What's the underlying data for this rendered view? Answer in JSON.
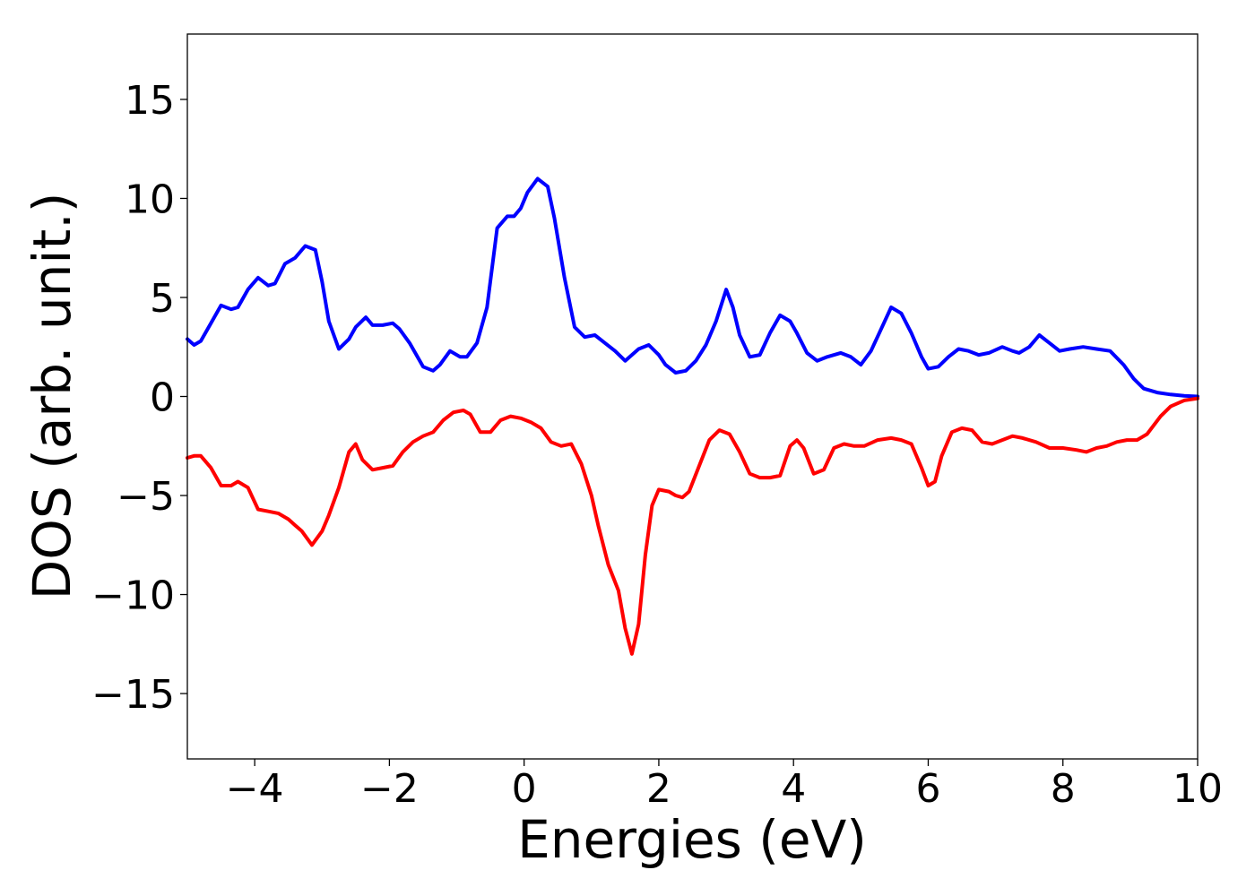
{
  "chart_data": {
    "type": "line",
    "xlabel": "Energies (eV)",
    "ylabel": "DOS (arb. unit.)",
    "xlim": [
      -5,
      10
    ],
    "ylim": [
      -18.3,
      18.3
    ],
    "xticks": [
      -4,
      -2,
      0,
      2,
      4,
      6,
      8,
      10
    ],
    "xtick_labels": [
      "−4",
      "−2",
      "0",
      "2",
      "4",
      "6",
      "8",
      "10"
    ],
    "yticks": [
      15,
      10,
      5,
      0,
      -5,
      -10,
      -15
    ],
    "ytick_labels": [
      "15",
      "10",
      "5",
      "0",
      "−5",
      "−10",
      "−15"
    ],
    "grid": false,
    "legend": "none",
    "series": [
      {
        "color": "#0000ff",
        "x": [
          -5,
          -4.9,
          -4.8,
          -4.65,
          -4.5,
          -4.35,
          -4.25,
          -4.1,
          -3.95,
          -3.8,
          -3.7,
          -3.55,
          -3.4,
          -3.25,
          -3.1,
          -3.0,
          -2.9,
          -2.75,
          -2.6,
          -2.5,
          -2.35,
          -2.25,
          -2.1,
          -1.95,
          -1.85,
          -1.7,
          -1.5,
          -1.35,
          -1.25,
          -1.1,
          -0.95,
          -0.85,
          -0.7,
          -0.55,
          -0.4,
          -0.25,
          -0.15,
          -0.05,
          0.05,
          0.2,
          0.35,
          0.45,
          0.6,
          0.75,
          0.9,
          1.05,
          1.2,
          1.35,
          1.5,
          1.7,
          1.85,
          2.0,
          2.1,
          2.25,
          2.4,
          2.55,
          2.7,
          2.85,
          3.0,
          3.1,
          3.2,
          3.35,
          3.5,
          3.65,
          3.8,
          3.95,
          4.05,
          4.2,
          4.35,
          4.5,
          4.7,
          4.85,
          5.0,
          5.15,
          5.3,
          5.45,
          5.6,
          5.75,
          5.9,
          6.0,
          6.15,
          6.3,
          6.45,
          6.6,
          6.75,
          6.9,
          7.1,
          7.25,
          7.35,
          7.5,
          7.65,
          7.8,
          7.95,
          8.1,
          8.3,
          8.5,
          8.7,
          8.9,
          9.05,
          9.2,
          9.4,
          9.6,
          9.8,
          10.0
        ],
        "y": [
          2.9,
          2.6,
          2.8,
          3.7,
          4.6,
          4.4,
          4.5,
          5.4,
          6.0,
          5.6,
          5.7,
          6.7,
          7.0,
          7.6,
          7.4,
          5.8,
          3.8,
          2.4,
          2.9,
          3.5,
          4.0,
          3.6,
          3.6,
          3.7,
          3.4,
          2.7,
          1.5,
          1.3,
          1.6,
          2.3,
          2.0,
          2.0,
          2.7,
          4.5,
          8.5,
          9.1,
          9.1,
          9.5,
          10.3,
          11.0,
          10.6,
          9.0,
          6.0,
          3.5,
          3.0,
          3.1,
          2.7,
          2.3,
          1.8,
          2.4,
          2.6,
          2.1,
          1.6,
          1.2,
          1.3,
          1.8,
          2.6,
          3.8,
          5.4,
          4.5,
          3.1,
          2.0,
          2.1,
          3.2,
          4.1,
          3.8,
          3.2,
          2.2,
          1.8,
          2.0,
          2.2,
          2.0,
          1.6,
          2.3,
          3.4,
          4.5,
          4.2,
          3.2,
          2.0,
          1.4,
          1.5,
          2.0,
          2.4,
          2.3,
          2.1,
          2.2,
          2.5,
          2.3,
          2.2,
          2.5,
          3.1,
          2.7,
          2.3,
          2.4,
          2.5,
          2.4,
          2.3,
          1.6,
          0.9,
          0.4,
          0.2,
          0.1,
          0.03,
          0.0
        ]
      },
      {
        "color": "#ff0000",
        "x": [
          -5,
          -4.9,
          -4.8,
          -4.65,
          -4.5,
          -4.35,
          -4.25,
          -4.1,
          -3.95,
          -3.8,
          -3.65,
          -3.5,
          -3.4,
          -3.3,
          -3.15,
          -3.0,
          -2.9,
          -2.75,
          -2.6,
          -2.5,
          -2.4,
          -2.25,
          -2.1,
          -1.95,
          -1.8,
          -1.65,
          -1.5,
          -1.35,
          -1.2,
          -1.05,
          -0.9,
          -0.8,
          -0.65,
          -0.5,
          -0.35,
          -0.2,
          -0.05,
          0.1,
          0.25,
          0.4,
          0.55,
          0.7,
          0.85,
          1.0,
          1.1,
          1.25,
          1.4,
          1.5,
          1.6,
          1.7,
          1.8,
          1.9,
          2.0,
          2.15,
          2.25,
          2.35,
          2.45,
          2.6,
          2.75,
          2.9,
          3.05,
          3.2,
          3.35,
          3.5,
          3.65,
          3.8,
          3.95,
          4.05,
          4.15,
          4.3,
          4.45,
          4.6,
          4.75,
          4.9,
          5.05,
          5.25,
          5.45,
          5.6,
          5.75,
          5.9,
          6.0,
          6.1,
          6.2,
          6.35,
          6.5,
          6.65,
          6.8,
          6.95,
          7.1,
          7.25,
          7.4,
          7.6,
          7.8,
          8.0,
          8.2,
          8.35,
          8.5,
          8.65,
          8.8,
          8.95,
          9.1,
          9.25,
          9.45,
          9.6,
          9.8,
          10.0
        ],
        "y": [
          -3.1,
          -3.0,
          -3.0,
          -3.6,
          -4.5,
          -4.5,
          -4.3,
          -4.6,
          -5.7,
          -5.8,
          -5.9,
          -6.2,
          -6.5,
          -6.8,
          -7.5,
          -6.8,
          -6.0,
          -4.6,
          -2.8,
          -2.4,
          -3.2,
          -3.7,
          -3.6,
          -3.5,
          -2.8,
          -2.3,
          -2.0,
          -1.8,
          -1.2,
          -0.8,
          -0.7,
          -0.9,
          -1.8,
          -1.8,
          -1.2,
          -1.0,
          -1.1,
          -1.3,
          -1.6,
          -2.3,
          -2.5,
          -2.4,
          -3.4,
          -5.0,
          -6.5,
          -8.5,
          -9.8,
          -11.7,
          -13.0,
          -11.5,
          -8.0,
          -5.5,
          -4.7,
          -4.8,
          -5.0,
          -5.1,
          -4.8,
          -3.5,
          -2.2,
          -1.7,
          -1.9,
          -2.8,
          -3.9,
          -4.1,
          -4.1,
          -4.0,
          -2.5,
          -2.2,
          -2.6,
          -3.9,
          -3.7,
          -2.6,
          -2.4,
          -2.5,
          -2.5,
          -2.2,
          -2.1,
          -2.2,
          -2.4,
          -3.6,
          -4.5,
          -4.3,
          -3.0,
          -1.8,
          -1.6,
          -1.7,
          -2.3,
          -2.4,
          -2.2,
          -2.0,
          -2.1,
          -2.3,
          -2.6,
          -2.6,
          -2.7,
          -2.8,
          -2.6,
          -2.5,
          -2.3,
          -2.2,
          -2.2,
          -1.9,
          -1.0,
          -0.5,
          -0.2,
          -0.1
        ]
      }
    ]
  }
}
